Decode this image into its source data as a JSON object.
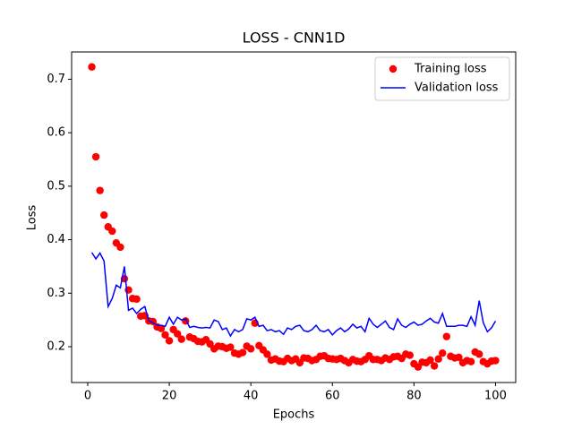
{
  "chart_data": {
    "type": "line",
    "title": "LOSS - CNN1D",
    "xlabel": "Epochs",
    "ylabel": "Loss",
    "x": [
      1,
      2,
      3,
      4,
      5,
      6,
      7,
      8,
      9,
      10,
      11,
      12,
      13,
      14,
      15,
      16,
      17,
      18,
      19,
      20,
      21,
      22,
      23,
      24,
      25,
      26,
      27,
      28,
      29,
      30,
      31,
      32,
      33,
      34,
      35,
      36,
      37,
      38,
      39,
      40,
      41,
      42,
      43,
      44,
      45,
      46,
      47,
      48,
      49,
      50,
      51,
      52,
      53,
      54,
      55,
      56,
      57,
      58,
      59,
      60,
      61,
      62,
      63,
      64,
      65,
      66,
      67,
      68,
      69,
      70,
      71,
      72,
      73,
      74,
      75,
      76,
      77,
      78,
      79,
      80,
      81,
      82,
      83,
      84,
      85,
      86,
      87,
      88,
      89,
      90,
      91,
      92,
      93,
      94,
      95,
      96,
      97,
      98,
      99,
      100
    ],
    "series": [
      {
        "name": "Training loss",
        "color": "#ff0000",
        "style": "markers",
        "values": [
          0.723,
          0.555,
          0.492,
          0.446,
          0.424,
          0.416,
          0.394,
          0.386,
          0.327,
          0.306,
          0.29,
          0.289,
          0.257,
          0.258,
          0.248,
          0.247,
          0.237,
          0.234,
          0.222,
          0.211,
          0.232,
          0.224,
          0.214,
          0.248,
          0.218,
          0.215,
          0.21,
          0.209,
          0.213,
          0.205,
          0.196,
          0.201,
          0.2,
          0.197,
          0.199,
          0.188,
          0.186,
          0.189,
          0.201,
          0.196,
          0.244,
          0.202,
          0.194,
          0.186,
          0.175,
          0.177,
          0.173,
          0.172,
          0.178,
          0.174,
          0.177,
          0.17,
          0.179,
          0.178,
          0.174,
          0.176,
          0.182,
          0.183,
          0.178,
          0.177,
          0.176,
          0.178,
          0.174,
          0.17,
          0.176,
          0.173,
          0.172,
          0.176,
          0.183,
          0.176,
          0.176,
          0.174,
          0.179,
          0.176,
          0.181,
          0.182,
          0.178,
          0.186,
          0.184,
          0.168,
          0.162,
          0.171,
          0.17,
          0.175,
          0.164,
          0.177,
          0.188,
          0.219,
          0.182,
          0.179,
          0.18,
          0.17,
          0.174,
          0.172,
          0.19,
          0.186,
          0.172,
          0.168,
          0.173,
          0.174
        ]
      },
      {
        "name": "Validation loss",
        "color": "#0000ff",
        "style": "line",
        "values": [
          0.376,
          0.364,
          0.375,
          0.36,
          0.275,
          0.29,
          0.315,
          0.31,
          0.35,
          0.268,
          0.272,
          0.262,
          0.27,
          0.275,
          0.248,
          0.245,
          0.24,
          0.24,
          0.238,
          0.255,
          0.242,
          0.255,
          0.25,
          0.252,
          0.236,
          0.238,
          0.236,
          0.235,
          0.236,
          0.235,
          0.25,
          0.247,
          0.232,
          0.235,
          0.22,
          0.232,
          0.228,
          0.232,
          0.252,
          0.25,
          0.255,
          0.238,
          0.24,
          0.23,
          0.232,
          0.228,
          0.23,
          0.223,
          0.235,
          0.232,
          0.238,
          0.24,
          0.23,
          0.228,
          0.232,
          0.24,
          0.23,
          0.228,
          0.232,
          0.222,
          0.23,
          0.235,
          0.228,
          0.233,
          0.242,
          0.235,
          0.238,
          0.228,
          0.253,
          0.242,
          0.236,
          0.242,
          0.248,
          0.236,
          0.232,
          0.252,
          0.24,
          0.236,
          0.242,
          0.246,
          0.24,
          0.242,
          0.248,
          0.253,
          0.246,
          0.244,
          0.262,
          0.238,
          0.238,
          0.238,
          0.24,
          0.24,
          0.238,
          0.256,
          0.24,
          0.286,
          0.245,
          0.228,
          0.235,
          0.248
        ]
      }
    ],
    "xlim": [
      -3.95,
      104.95
    ],
    "ylim": [
      0.133,
      0.751
    ],
    "xticks": [
      0,
      20,
      40,
      60,
      80,
      100
    ],
    "yticks": [
      0.2,
      0.3,
      0.4,
      0.5,
      0.6,
      0.7
    ],
    "legend": "upper right"
  }
}
